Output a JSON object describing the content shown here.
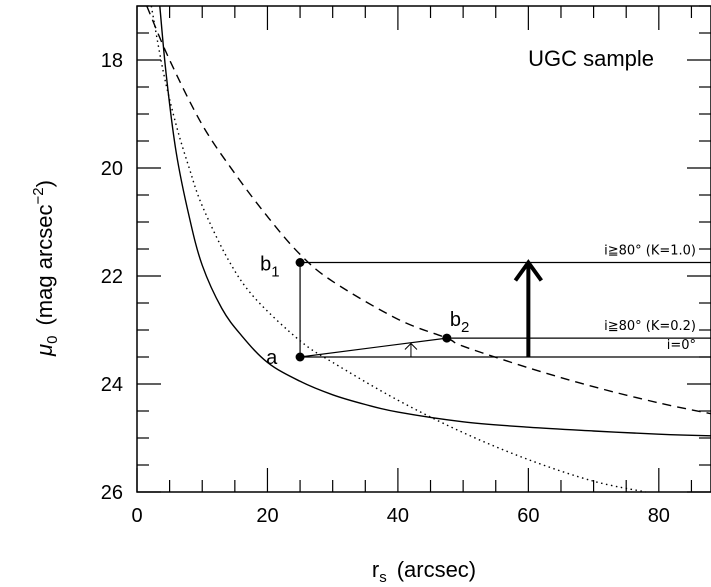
{
  "chart_data": {
    "type": "line",
    "title": "UGC sample",
    "xlabel_main": "r",
    "xlabel_sub": "s",
    "xlabel_rest": "(arcsec)",
    "ylabel_main": "μ",
    "ylabel_sub": "0",
    "ylabel_rest": "(mag arcsec",
    "ylabel_sup": "−2",
    "ylabel_close": ")",
    "xlim": [
      0,
      88
    ],
    "ylim": [
      26,
      17
    ],
    "y_inverted": true,
    "x_ticks": [
      0,
      20,
      40,
      60,
      80
    ],
    "x_tick_labels": [
      "0",
      "20",
      "40",
      "60",
      "80"
    ],
    "x_minor_step": 5,
    "y_ticks": [
      18,
      20,
      22,
      24,
      26
    ],
    "y_tick_labels": [
      "18",
      "20",
      "22",
      "24",
      "26"
    ],
    "y_minor_step": 0.5,
    "series": [
      {
        "style": "solid",
        "x": [
          3.5,
          4.5,
          6,
          8,
          10,
          13,
          16,
          20,
          25,
          30,
          35,
          40,
          50,
          60,
          70,
          80,
          88
        ],
        "y": [
          17.0,
          18.3,
          19.7,
          20.9,
          21.8,
          22.6,
          23.1,
          23.6,
          23.95,
          24.2,
          24.38,
          24.52,
          24.7,
          24.8,
          24.87,
          24.93,
          24.96
        ]
      },
      {
        "style": "dotted",
        "x": [
          2.2,
          4,
          6,
          8,
          10,
          14,
          18,
          25,
          30,
          40,
          50,
          60,
          70,
          78
        ],
        "y": [
          17.0,
          18.2,
          19.2,
          20.0,
          20.7,
          21.7,
          22.4,
          23.2,
          23.6,
          24.3,
          24.9,
          25.4,
          25.8,
          26.0
        ]
      },
      {
        "style": "dashed",
        "x": [
          1.5,
          5,
          10,
          15,
          20,
          25,
          30,
          40,
          47.5,
          50,
          60,
          70,
          80,
          88
        ],
        "y": [
          17.0,
          18.0,
          19.2,
          20.1,
          20.9,
          21.6,
          22.1,
          22.8,
          23.15,
          23.3,
          23.7,
          24.05,
          24.35,
          24.55
        ]
      }
    ],
    "points": [
      {
        "label": "a",
        "x": 25,
        "y": 23.5
      },
      {
        "label": "b",
        "sub": "1",
        "x": 25,
        "y": 21.75
      },
      {
        "label": "b",
        "sub": "2",
        "x": 47.5,
        "y": 23.15
      }
    ],
    "hlines": [
      {
        "y": 21.75,
        "x_from": 25,
        "x_to": 88,
        "label": "i≧80° (K=1.0)"
      },
      {
        "y": 23.15,
        "x_from": 47.5,
        "x_to": 88,
        "label": "i≧80° (K=0.2)"
      },
      {
        "y": 23.5,
        "x_from": 25,
        "x_to": 88,
        "label": "i=0°"
      }
    ],
    "big_arrow": {
      "x": 60,
      "y_from": 23.5,
      "y_to": 21.75
    },
    "small_arrow": {
      "x": 42,
      "y_from": 23.5,
      "y_to": 23.25
    }
  }
}
